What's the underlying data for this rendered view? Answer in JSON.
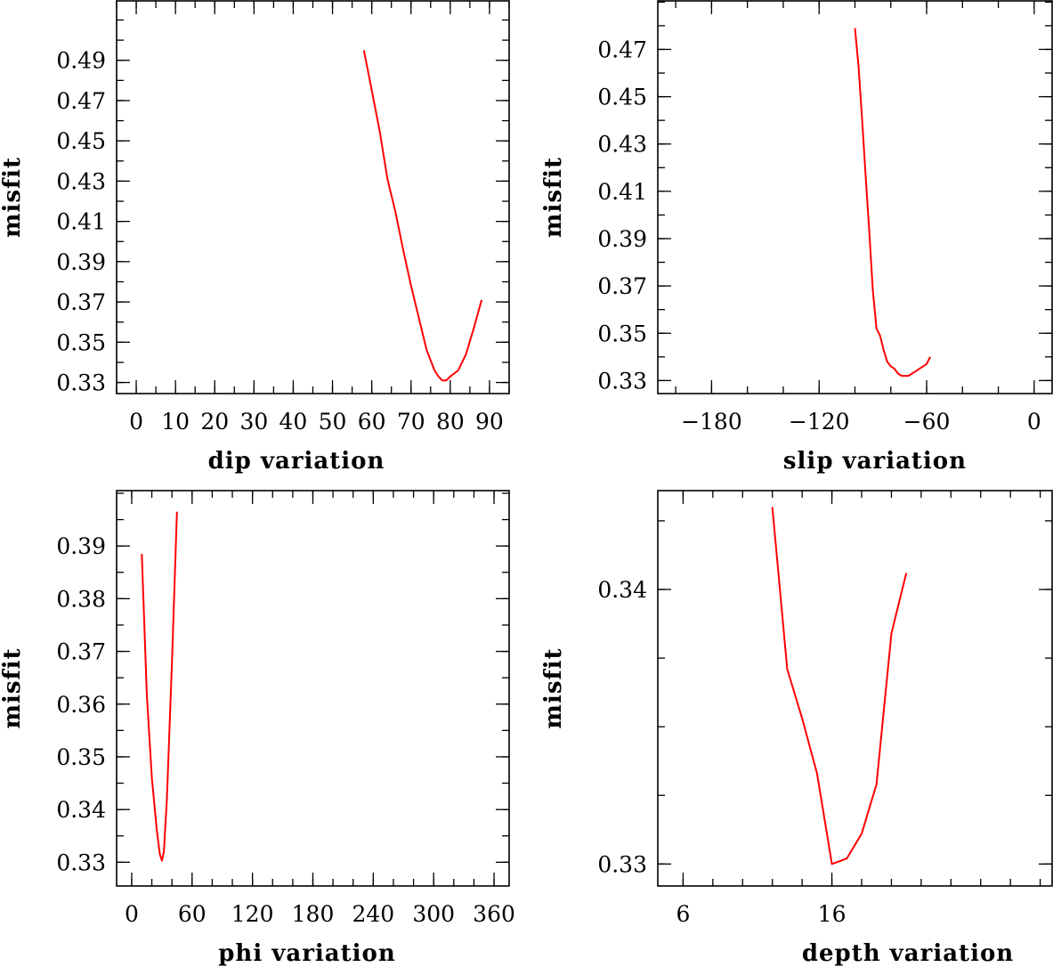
{
  "chart_data": [
    {
      "type": "line",
      "xlabel": "dip    variation",
      "ylabel": "misfit",
      "xlim": [
        -5,
        95
      ],
      "ylim": [
        0.3245,
        0.5195
      ],
      "xticks": [
        0,
        10,
        20,
        30,
        40,
        50,
        60,
        70,
        80,
        90
      ],
      "xtick_labels": [
        "0",
        "10",
        "20",
        "30",
        "40",
        "50",
        "60",
        "70",
        "80",
        "90"
      ],
      "yticks": [
        0.33,
        0.35,
        0.37,
        0.39,
        0.41,
        0.43,
        0.45,
        0.47,
        0.49
      ],
      "ytick_labels": [
        "0.33",
        "0.35",
        "0.37",
        "0.39",
        "0.41",
        "0.43",
        "0.45",
        "0.47",
        "0.49"
      ],
      "x_minor": 5,
      "y_minor": 0.01,
      "grid": false,
      "series": [
        {
          "color": "#ff0000",
          "x": [
            58,
            60,
            62,
            64,
            66,
            68,
            70,
            72,
            74,
            76,
            77,
            78,
            79,
            80,
            82,
            84,
            86,
            88
          ],
          "y": [
            0.495,
            0.475,
            0.455,
            0.431,
            0.415,
            0.396,
            0.378,
            0.362,
            0.346,
            0.336,
            0.333,
            0.331,
            0.331,
            0.333,
            0.336,
            0.344,
            0.357,
            0.371
          ]
        }
      ]
    },
    {
      "type": "line",
      "xlabel": "slip    variation",
      "ylabel": "misfit",
      "xlim": [
        -210,
        10
      ],
      "ylim": [
        0.3245,
        0.4905
      ],
      "xticks": [
        -180,
        -120,
        -60,
        0
      ],
      "xtick_labels": [
        "−180",
        "−120",
        "−60",
        "0"
      ],
      "yticks": [
        0.33,
        0.35,
        0.37,
        0.39,
        0.41,
        0.43,
        0.45,
        0.47
      ],
      "ytick_labels": [
        "0.33",
        "0.35",
        "0.37",
        "0.39",
        "0.41",
        "0.43",
        "0.45",
        "0.47"
      ],
      "x_minor": 20,
      "y_minor": 0.01,
      "grid": false,
      "series": [
        {
          "color": "#ff0000",
          "x": [
            -100,
            -98,
            -96,
            -94,
            -92,
            -90,
            -88,
            -86,
            -84,
            -82,
            -80,
            -78,
            -76,
            -74,
            -72,
            -70,
            -68,
            -66,
            -64,
            -62,
            -60,
            -58
          ],
          "y": [
            0.479,
            0.463,
            0.44,
            0.416,
            0.393,
            0.368,
            0.352,
            0.349,
            0.343,
            0.338,
            0.336,
            0.335,
            0.333,
            0.332,
            0.332,
            0.332,
            0.333,
            0.334,
            0.335,
            0.336,
            0.337,
            0.34
          ]
        }
      ]
    },
    {
      "type": "line",
      "xlabel": "phi     variation",
      "ylabel": "misfit",
      "xlim": [
        -15,
        375
      ],
      "ylim": [
        0.3255,
        0.4005
      ],
      "xticks": [
        0,
        60,
        120,
        180,
        240,
        300,
        360
      ],
      "xtick_labels": [
        "0",
        "60",
        "120",
        "180",
        "240",
        "300",
        "360"
      ],
      "yticks": [
        0.33,
        0.34,
        0.35,
        0.36,
        0.37,
        0.38,
        0.39
      ],
      "ytick_labels": [
        "0.33",
        "0.34",
        "0.35",
        "0.36",
        "0.37",
        "0.38",
        "0.39"
      ],
      "x_minor": 20,
      "y_minor": 0.005,
      "grid": false,
      "series": [
        {
          "color": "#ff0000",
          "x": [
            10,
            15,
            20,
            25,
            28,
            30,
            32,
            35,
            40,
            45
          ],
          "y": [
            0.3885,
            0.362,
            0.346,
            0.336,
            0.3315,
            0.3303,
            0.332,
            0.342,
            0.368,
            0.3965
          ]
        }
      ]
    },
    {
      "type": "line",
      "xlabel": "depth  variation",
      "ylabel": "misfit",
      "xlim": [
        4.3,
        30.8
      ],
      "ylim": [
        0.3292,
        0.3436
      ],
      "xticks": [
        6,
        16
      ],
      "xtick_labels": [
        "6",
        "16"
      ],
      "yticks": [
        0.33,
        0.34
      ],
      "ytick_labels": [
        "0.33",
        "0.34"
      ],
      "x_minor": 2,
      "y_minor": 0.0025,
      "grid": false,
      "series": [
        {
          "color": "#ff0000",
          "x": [
            12,
            13,
            14,
            15,
            16,
            17,
            18,
            19,
            20,
            21
          ],
          "y": [
            0.343,
            0.3371,
            0.3353,
            0.3333,
            0.33,
            0.3302,
            0.3311,
            0.3329,
            0.3384,
            0.3406
          ]
        }
      ]
    }
  ]
}
